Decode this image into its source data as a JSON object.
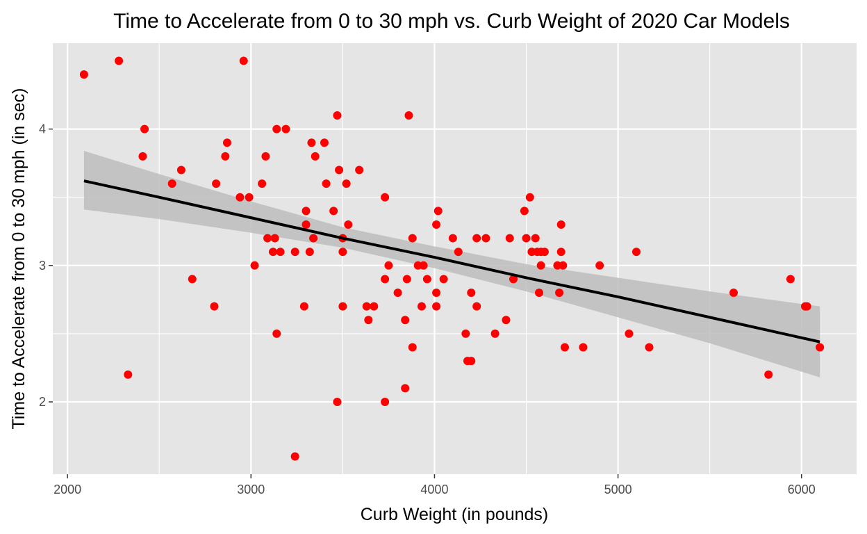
{
  "chart_data": {
    "type": "scatter",
    "title": "Time to Accelerate from 0 to 30 mph vs. Curb Weight of 2020 Car Models",
    "xlabel": "Curb Weight (in pounds)",
    "ylabel": "Time to Accelerate from 0 to 30 mph (in sec)",
    "xlim": [
      1920,
      6300
    ],
    "ylim": [
      1.47,
      4.63
    ],
    "x_ticks": [
      2000,
      3000,
      4000,
      5000,
      6000
    ],
    "x_tick_labels": [
      "2000",
      "3000",
      "4000",
      "5000",
      "6000"
    ],
    "y_ticks": [
      2,
      3,
      4
    ],
    "y_tick_labels": [
      "2",
      "3",
      "4"
    ],
    "grid": true,
    "legend": "none",
    "colors": {
      "points": "#ff0000",
      "panel_background": "#e5e5e5",
      "grid": "#ffffff",
      "fit_line": "#000000",
      "confidence_band": "#bdbdbd"
    },
    "points": [
      [
        2090,
        4.4
      ],
      [
        2280,
        4.5
      ],
      [
        2960,
        4.5
      ],
      [
        3470,
        4.1
      ],
      [
        3860,
        4.1
      ],
      [
        2420,
        4.0
      ],
      [
        3140,
        4.0
      ],
      [
        3190,
        4.0
      ],
      [
        2410,
        3.8
      ],
      [
        2870,
        3.9
      ],
      [
        3330,
        3.9
      ],
      [
        3400,
        3.9
      ],
      [
        2860,
        3.8
      ],
      [
        3080,
        3.8
      ],
      [
        3350,
        3.8
      ],
      [
        2620,
        3.7
      ],
      [
        3480,
        3.7
      ],
      [
        3590,
        3.7
      ],
      [
        2570,
        3.6
      ],
      [
        2810,
        3.6
      ],
      [
        3060,
        3.6
      ],
      [
        3410,
        3.6
      ],
      [
        3520,
        3.6
      ],
      [
        2940,
        3.5
      ],
      [
        2990,
        3.5
      ],
      [
        3730,
        3.5
      ],
      [
        4520,
        3.5
      ],
      [
        3300,
        3.4
      ],
      [
        3450,
        3.4
      ],
      [
        4020,
        3.4
      ],
      [
        4490,
        3.4
      ],
      [
        3300,
        3.3
      ],
      [
        3530,
        3.3
      ],
      [
        4010,
        3.3
      ],
      [
        4690,
        3.3
      ],
      [
        3090,
        3.2
      ],
      [
        3130,
        3.2
      ],
      [
        3340,
        3.2
      ],
      [
        3500,
        3.2
      ],
      [
        3880,
        3.2
      ],
      [
        4100,
        3.2
      ],
      [
        4230,
        3.2
      ],
      [
        4280,
        3.2
      ],
      [
        4410,
        3.2
      ],
      [
        4500,
        3.2
      ],
      [
        4550,
        3.2
      ],
      [
        3120,
        3.1
      ],
      [
        3160,
        3.1
      ],
      [
        3240,
        3.1
      ],
      [
        3320,
        3.1
      ],
      [
        3500,
        3.1
      ],
      [
        4130,
        3.1
      ],
      [
        4530,
        3.1
      ],
      [
        4560,
        3.1
      ],
      [
        4580,
        3.1
      ],
      [
        4600,
        3.1
      ],
      [
        4690,
        3.1
      ],
      [
        5100,
        3.1
      ],
      [
        3020,
        3.0
      ],
      [
        3750,
        3.0
      ],
      [
        3910,
        3.0
      ],
      [
        3940,
        3.0
      ],
      [
        4580,
        3.0
      ],
      [
        4670,
        3.0
      ],
      [
        4700,
        3.0
      ],
      [
        4900,
        3.0
      ],
      [
        2680,
        2.9
      ],
      [
        3730,
        2.9
      ],
      [
        3850,
        2.9
      ],
      [
        3960,
        2.9
      ],
      [
        4050,
        2.9
      ],
      [
        4430,
        2.9
      ],
      [
        5940,
        2.9
      ],
      [
        3800,
        2.8
      ],
      [
        4010,
        2.8
      ],
      [
        4200,
        2.8
      ],
      [
        4570,
        2.8
      ],
      [
        4680,
        2.8
      ],
      [
        5630,
        2.8
      ],
      [
        2800,
        2.7
      ],
      [
        3290,
        2.7
      ],
      [
        3500,
        2.7
      ],
      [
        3630,
        2.7
      ],
      [
        3670,
        2.7
      ],
      [
        3930,
        2.7
      ],
      [
        4010,
        2.7
      ],
      [
        4230,
        2.7
      ],
      [
        6020,
        2.7
      ],
      [
        6030,
        2.7
      ],
      [
        3640,
        2.6
      ],
      [
        3840,
        2.6
      ],
      [
        4390,
        2.6
      ],
      [
        3140,
        2.5
      ],
      [
        4170,
        2.5
      ],
      [
        4330,
        2.5
      ],
      [
        5060,
        2.5
      ],
      [
        3880,
        2.4
      ],
      [
        4710,
        2.4
      ],
      [
        4810,
        2.4
      ],
      [
        5170,
        2.4
      ],
      [
        6100,
        2.4
      ],
      [
        4180,
        2.3
      ],
      [
        4200,
        2.3
      ],
      [
        2330,
        2.2
      ],
      [
        5820,
        2.2
      ],
      [
        3840,
        2.1
      ],
      [
        3470,
        2.0
      ],
      [
        3730,
        2.0
      ],
      [
        3240,
        1.6
      ]
    ],
    "fit": {
      "x": [
        2090,
        2500,
        3000,
        3500,
        4000,
        4500,
        5000,
        5500,
        6100
      ],
      "y": [
        3.62,
        3.5,
        3.35,
        3.2,
        3.06,
        2.91,
        2.77,
        2.62,
        2.44
      ],
      "lower": [
        3.41,
        3.34,
        3.24,
        3.13,
        2.98,
        2.81,
        2.62,
        2.43,
        2.18
      ],
      "upper": [
        3.84,
        3.67,
        3.47,
        3.28,
        3.14,
        3.01,
        2.91,
        2.81,
        2.7
      ]
    }
  }
}
